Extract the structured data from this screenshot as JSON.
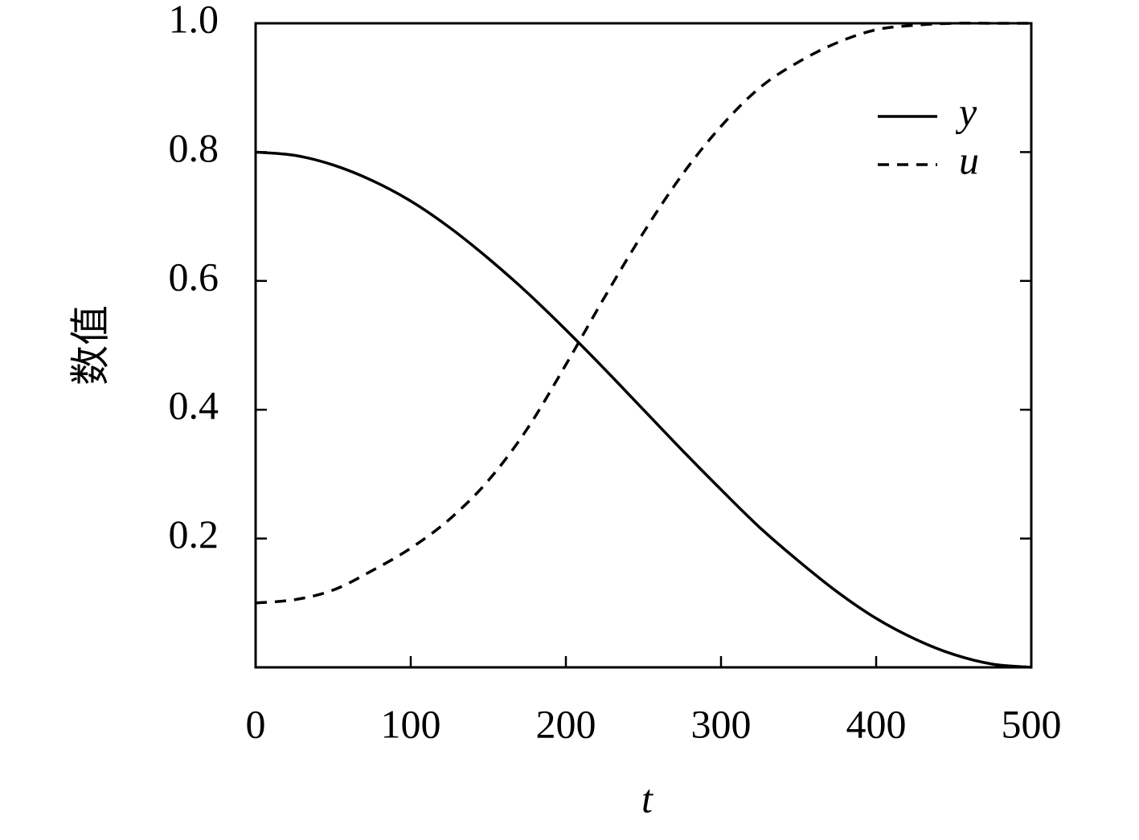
{
  "chart_data": {
    "type": "line",
    "x_label": "t",
    "y_label": "数值",
    "x": [
      0,
      25,
      50,
      75,
      100,
      125,
      150,
      175,
      200,
      225,
      250,
      275,
      300,
      325,
      350,
      375,
      400,
      425,
      450,
      475,
      500
    ],
    "series": [
      {
        "name": "y",
        "color": "#000000",
        "dash": "solid",
        "values": [
          0.8,
          0.795,
          0.78,
          0.756,
          0.724,
          0.683,
          0.635,
          0.582,
          0.524,
          0.463,
          0.4,
          0.337,
          0.276,
          0.217,
          0.165,
          0.117,
          0.076,
          0.044,
          0.02,
          0.005,
          0
        ]
      },
      {
        "name": "u",
        "color": "#000000",
        "dash": "dashed",
        "values": [
          0.1,
          0.105,
          0.12,
          0.15,
          0.185,
          0.23,
          0.29,
          0.37,
          0.47,
          0.575,
          0.675,
          0.765,
          0.84,
          0.9,
          0.94,
          0.97,
          0.99,
          0.997,
          1.0,
          1.0,
          1.0
        ]
      }
    ],
    "xlim": [
      0,
      500
    ],
    "xticks": [
      0,
      100,
      200,
      300,
      400,
      500
    ],
    "ylim": [
      0,
      1.0
    ],
    "yticks": [
      0.2,
      0.4,
      0.6,
      0.8,
      {
        "value": 1.0,
        "label": "1.0"
      }
    ],
    "grid": false,
    "legend": "top-right"
  }
}
